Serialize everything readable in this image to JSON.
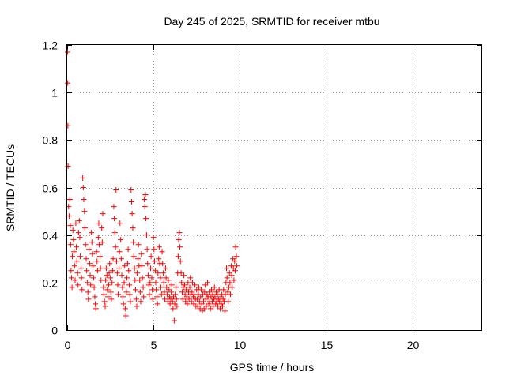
{
  "chart_data": {
    "type": "scatter",
    "title": "Day 245 of 2025, SRMTID for receiver mtbu",
    "xlabel": "GPS time / hours",
    "ylabel": "SRMTID / TECUs",
    "xlim": [
      0,
      24
    ],
    "ylim": [
      0,
      1.2
    ],
    "xticks": [
      0,
      5,
      10,
      15,
      20
    ],
    "xtick_labels": [
      "0",
      "5",
      "10",
      "15",
      "20"
    ],
    "yticks": [
      0,
      0.2,
      0.4,
      0.6,
      0.8,
      1.0,
      1.2
    ],
    "ytick_labels": [
      "0",
      "0.2",
      "0.4",
      "0.6",
      "0.8",
      "1",
      "1.2"
    ],
    "grid": true,
    "marker": "+",
    "series": [
      {
        "name": "mtbu",
        "color": "#ff0000",
        "points": [
          [
            0.02,
            1.17
          ],
          [
            0.03,
            1.04
          ],
          [
            0.04,
            0.86
          ],
          [
            0.05,
            0.69
          ],
          [
            0.08,
            0.52
          ],
          [
            0.12,
            0.48
          ],
          [
            0.15,
            0.55
          ],
          [
            0.18,
            0.44
          ],
          [
            0.2,
            0.36
          ],
          [
            0.22,
            0.25
          ],
          [
            0.25,
            0.22
          ],
          [
            0.28,
            0.18
          ],
          [
            0.3,
            0.31
          ],
          [
            0.33,
            0.42
          ],
          [
            0.36,
            0.38
          ],
          [
            0.4,
            0.33
          ],
          [
            0.43,
            0.27
          ],
          [
            0.46,
            0.21
          ],
          [
            0.5,
            0.45
          ],
          [
            0.53,
            0.35
          ],
          [
            0.56,
            0.29
          ],
          [
            0.6,
            0.24
          ],
          [
            0.63,
            0.19
          ],
          [
            0.66,
            0.41
          ],
          [
            0.7,
            0.46
          ],
          [
            0.73,
            0.39
          ],
          [
            0.76,
            0.31
          ],
          [
            0.8,
            0.26
          ],
          [
            0.83,
            0.22
          ],
          [
            0.86,
            0.17
          ],
          [
            0.9,
            0.64
          ],
          [
            0.93,
            0.6
          ],
          [
            0.96,
            0.55
          ],
          [
            1.0,
            0.5
          ],
          [
            1.03,
            0.43
          ],
          [
            1.06,
            0.36
          ],
          [
            1.1,
            0.3
          ],
          [
            1.13,
            0.25
          ],
          [
            1.16,
            0.2
          ],
          [
            1.2,
            0.16
          ],
          [
            1.23,
            0.13
          ],
          [
            1.26,
            0.34
          ],
          [
            1.3,
            0.28
          ],
          [
            1.33,
            0.23
          ],
          [
            1.36,
            0.19
          ],
          [
            1.4,
            0.41
          ],
          [
            1.43,
            0.37
          ],
          [
            1.46,
            0.32
          ],
          [
            1.5,
            0.27
          ],
          [
            1.53,
            0.22
          ],
          [
            1.56,
            0.18
          ],
          [
            1.6,
            0.14
          ],
          [
            1.63,
            0.11
          ],
          [
            1.66,
            0.09
          ],
          [
            1.7,
            0.33
          ],
          [
            1.73,
            0.29
          ],
          [
            1.76,
            0.25
          ],
          [
            1.8,
            0.39
          ],
          [
            1.83,
            0.45
          ],
          [
            1.86,
            0.36
          ],
          [
            1.9,
            0.31
          ],
          [
            1.93,
            0.26
          ],
          [
            1.96,
            0.21
          ],
          [
            2.0,
            0.43
          ],
          [
            2.03,
            0.37
          ],
          [
            2.06,
            0.49
          ],
          [
            2.1,
            0.18
          ],
          [
            2.13,
            0.15
          ],
          [
            2.16,
            0.12
          ],
          [
            2.2,
            0.1
          ],
          [
            2.23,
            0.21
          ],
          [
            2.26,
            0.26
          ],
          [
            2.3,
            0.23
          ],
          [
            2.33,
            0.17
          ],
          [
            2.36,
            0.14
          ],
          [
            2.4,
            0.19
          ],
          [
            2.43,
            0.24
          ],
          [
            2.46,
            0.28
          ],
          [
            2.5,
            0.22
          ],
          [
            2.53,
            0.16
          ],
          [
            2.56,
            0.13
          ],
          [
            2.6,
            0.2
          ],
          [
            2.63,
            0.25
          ],
          [
            2.66,
            0.3
          ],
          [
            2.7,
            0.52
          ],
          [
            2.73,
            0.47
          ],
          [
            2.76,
            0.41
          ],
          [
            2.8,
            0.35
          ],
          [
            2.83,
            0.59
          ],
          [
            2.86,
            0.29
          ],
          [
            2.9,
            0.24
          ],
          [
            2.93,
            0.19
          ],
          [
            2.96,
            0.15
          ],
          [
            3.0,
            0.26
          ],
          [
            3.03,
            0.33
          ],
          [
            3.06,
            0.45
          ],
          [
            3.1,
            0.38
          ],
          [
            3.13,
            0.3
          ],
          [
            3.16,
            0.23
          ],
          [
            3.2,
            0.18
          ],
          [
            3.23,
            0.14
          ],
          [
            3.26,
            0.11
          ],
          [
            3.3,
            0.2
          ],
          [
            3.33,
            0.27
          ],
          [
            3.36,
            0.09
          ],
          [
            3.4,
            0.06
          ],
          [
            3.43,
            0.16
          ],
          [
            3.46,
            0.22
          ],
          [
            3.5,
            0.28
          ],
          [
            3.53,
            0.34
          ],
          [
            3.56,
            0.25
          ],
          [
            3.6,
            0.19
          ],
          [
            3.63,
            0.15
          ],
          [
            3.66,
            0.12
          ],
          [
            3.7,
            0.59
          ],
          [
            3.73,
            0.54
          ],
          [
            3.76,
            0.49
          ],
          [
            3.8,
            0.43
          ],
          [
            3.83,
            0.37
          ],
          [
            3.86,
            0.31
          ],
          [
            3.9,
            0.26
          ],
          [
            3.93,
            0.21
          ],
          [
            3.96,
            0.17
          ],
          [
            4.0,
            0.13
          ],
          [
            4.03,
            0.1
          ],
          [
            4.06,
            0.24
          ],
          [
            4.1,
            0.3
          ],
          [
            4.13,
            0.36
          ],
          [
            4.16,
            0.27
          ],
          [
            4.2,
            0.21
          ],
          [
            4.23,
            0.16
          ],
          [
            4.26,
            0.12
          ],
          [
            4.3,
            0.32
          ],
          [
            4.33,
            0.27
          ],
          [
            4.36,
            0.22
          ],
          [
            4.4,
            0.18
          ],
          [
            4.43,
            0.14
          ],
          [
            4.46,
            0.55
          ],
          [
            4.5,
            0.52
          ],
          [
            4.53,
            0.57
          ],
          [
            4.56,
            0.47
          ],
          [
            4.6,
            0.4
          ],
          [
            4.63,
            0.34
          ],
          [
            4.66,
            0.28
          ],
          [
            4.7,
            0.23
          ],
          [
            4.73,
            0.19
          ],
          [
            4.76,
            0.15
          ],
          [
            4.8,
            0.2
          ],
          [
            4.83,
            0.26
          ],
          [
            4.86,
            0.31
          ],
          [
            4.9,
            0.22
          ],
          [
            4.93,
            0.17
          ],
          [
            4.96,
            0.13
          ],
          [
            5.0,
            0.39
          ],
          [
            5.03,
            0.34
          ],
          [
            5.06,
            0.29
          ],
          [
            5.1,
            0.25
          ],
          [
            5.13,
            0.2
          ],
          [
            5.16,
            0.17
          ],
          [
            5.2,
            0.14
          ],
          [
            5.23,
            0.11
          ],
          [
            5.26,
            0.24
          ],
          [
            5.3,
            0.3
          ],
          [
            5.33,
            0.35
          ],
          [
            5.36,
            0.28
          ],
          [
            5.4,
            0.22
          ],
          [
            5.43,
            0.18
          ],
          [
            5.46,
            0.15
          ],
          [
            5.5,
            0.33
          ],
          [
            5.53,
            0.28
          ],
          [
            5.56,
            0.24
          ],
          [
            5.6,
            0.2
          ],
          [
            5.63,
            0.16
          ],
          [
            5.66,
            0.13
          ],
          [
            5.7,
            0.26
          ],
          [
            5.73,
            0.22
          ],
          [
            5.76,
            0.18
          ],
          [
            5.8,
            0.15
          ],
          [
            5.83,
            0.12
          ],
          [
            5.86,
            0.21
          ],
          [
            5.9,
            0.17
          ],
          [
            5.93,
            0.14
          ],
          [
            5.96,
            0.11
          ],
          [
            6.0,
            0.13
          ],
          [
            6.03,
            0.16
          ],
          [
            6.06,
            0.19
          ],
          [
            6.1,
            0.12
          ],
          [
            6.13,
            0.09
          ],
          [
            6.16,
            0.14
          ],
          [
            6.2,
            0.04
          ],
          [
            6.23,
            0.11
          ],
          [
            6.26,
            0.15
          ],
          [
            6.3,
            0.18
          ],
          [
            6.33,
            0.13
          ],
          [
            6.36,
            0.1
          ],
          [
            6.4,
            0.24
          ],
          [
            6.43,
            0.31
          ],
          [
            6.46,
            0.38
          ],
          [
            6.5,
            0.41
          ],
          [
            6.53,
            0.35
          ],
          [
            6.56,
            0.29
          ],
          [
            6.6,
            0.24
          ],
          [
            6.63,
            0.2
          ],
          [
            6.66,
            0.16
          ],
          [
            6.7,
            0.13
          ],
          [
            6.73,
            0.18
          ],
          [
            6.76,
            0.23
          ],
          [
            6.8,
            0.19
          ],
          [
            6.83,
            0.15
          ],
          [
            6.86,
            0.12
          ],
          [
            6.9,
            0.17
          ],
          [
            6.93,
            0.14
          ],
          [
            6.96,
            0.11
          ],
          [
            7.0,
            0.2
          ],
          [
            7.03,
            0.16
          ],
          [
            7.06,
            0.13
          ],
          [
            7.1,
            0.18
          ],
          [
            7.13,
            0.22
          ],
          [
            7.16,
            0.15
          ],
          [
            7.2,
            0.12
          ],
          [
            7.23,
            0.16
          ],
          [
            7.26,
            0.2
          ],
          [
            7.3,
            0.14
          ],
          [
            7.33,
            0.11
          ],
          [
            7.36,
            0.15
          ],
          [
            7.4,
            0.19
          ],
          [
            7.43,
            0.13
          ],
          [
            7.46,
            0.1
          ],
          [
            7.5,
            0.17
          ],
          [
            7.53,
            0.13
          ],
          [
            7.56,
            0.1
          ],
          [
            7.6,
            0.15
          ],
          [
            7.63,
            0.18
          ],
          [
            7.66,
            0.12
          ],
          [
            7.7,
            0.09
          ],
          [
            7.73,
            0.14
          ],
          [
            7.76,
            0.17
          ],
          [
            7.8,
            0.11
          ],
          [
            7.83,
            0.08
          ],
          [
            7.86,
            0.15
          ],
          [
            7.9,
            0.12
          ],
          [
            7.93,
            0.09
          ],
          [
            7.96,
            0.16
          ],
          [
            8.0,
            0.19
          ],
          [
            8.03,
            0.13
          ],
          [
            8.06,
            0.1
          ],
          [
            8.1,
            0.15
          ],
          [
            8.13,
            0.2
          ],
          [
            8.16,
            0.14
          ],
          [
            8.2,
            0.11
          ],
          [
            8.23,
            0.16
          ],
          [
            8.26,
            0.12
          ],
          [
            8.3,
            0.09
          ],
          [
            8.33,
            0.14
          ],
          [
            8.36,
            0.17
          ],
          [
            8.4,
            0.12
          ],
          [
            8.43,
            0.15
          ],
          [
            8.46,
            0.1
          ],
          [
            8.5,
            0.13
          ],
          [
            8.53,
            0.18
          ],
          [
            8.56,
            0.14
          ],
          [
            8.6,
            0.11
          ],
          [
            8.63,
            0.16
          ],
          [
            8.66,
            0.12
          ],
          [
            8.7,
            0.15
          ],
          [
            8.73,
            0.1
          ],
          [
            8.76,
            0.13
          ],
          [
            8.8,
            0.17
          ],
          [
            8.83,
            0.12
          ],
          [
            8.86,
            0.09
          ],
          [
            8.9,
            0.14
          ],
          [
            8.93,
            0.11
          ],
          [
            8.96,
            0.15
          ],
          [
            9.0,
            0.1
          ],
          [
            9.03,
            0.13
          ],
          [
            9.06,
            0.17
          ],
          [
            9.1,
            0.12
          ],
          [
            9.13,
            0.08
          ],
          [
            9.16,
            0.15
          ],
          [
            9.2,
            0.2
          ],
          [
            9.23,
            0.26
          ],
          [
            9.26,
            0.22
          ],
          [
            9.3,
            0.16
          ],
          [
            9.33,
            0.12
          ],
          [
            9.36,
            0.18
          ],
          [
            9.4,
            0.24
          ],
          [
            9.43,
            0.2
          ],
          [
            9.46,
            0.15
          ],
          [
            9.5,
            0.27
          ],
          [
            9.53,
            0.23
          ],
          [
            9.56,
            0.18
          ],
          [
            9.6,
            0.3
          ],
          [
            9.63,
            0.26
          ],
          [
            9.66,
            0.21
          ],
          [
            9.7,
            0.29
          ],
          [
            9.73,
            0.25
          ],
          [
            9.76,
            0.35
          ],
          [
            9.8,
            0.31
          ],
          [
            9.83,
            0.27
          ]
        ]
      }
    ]
  }
}
